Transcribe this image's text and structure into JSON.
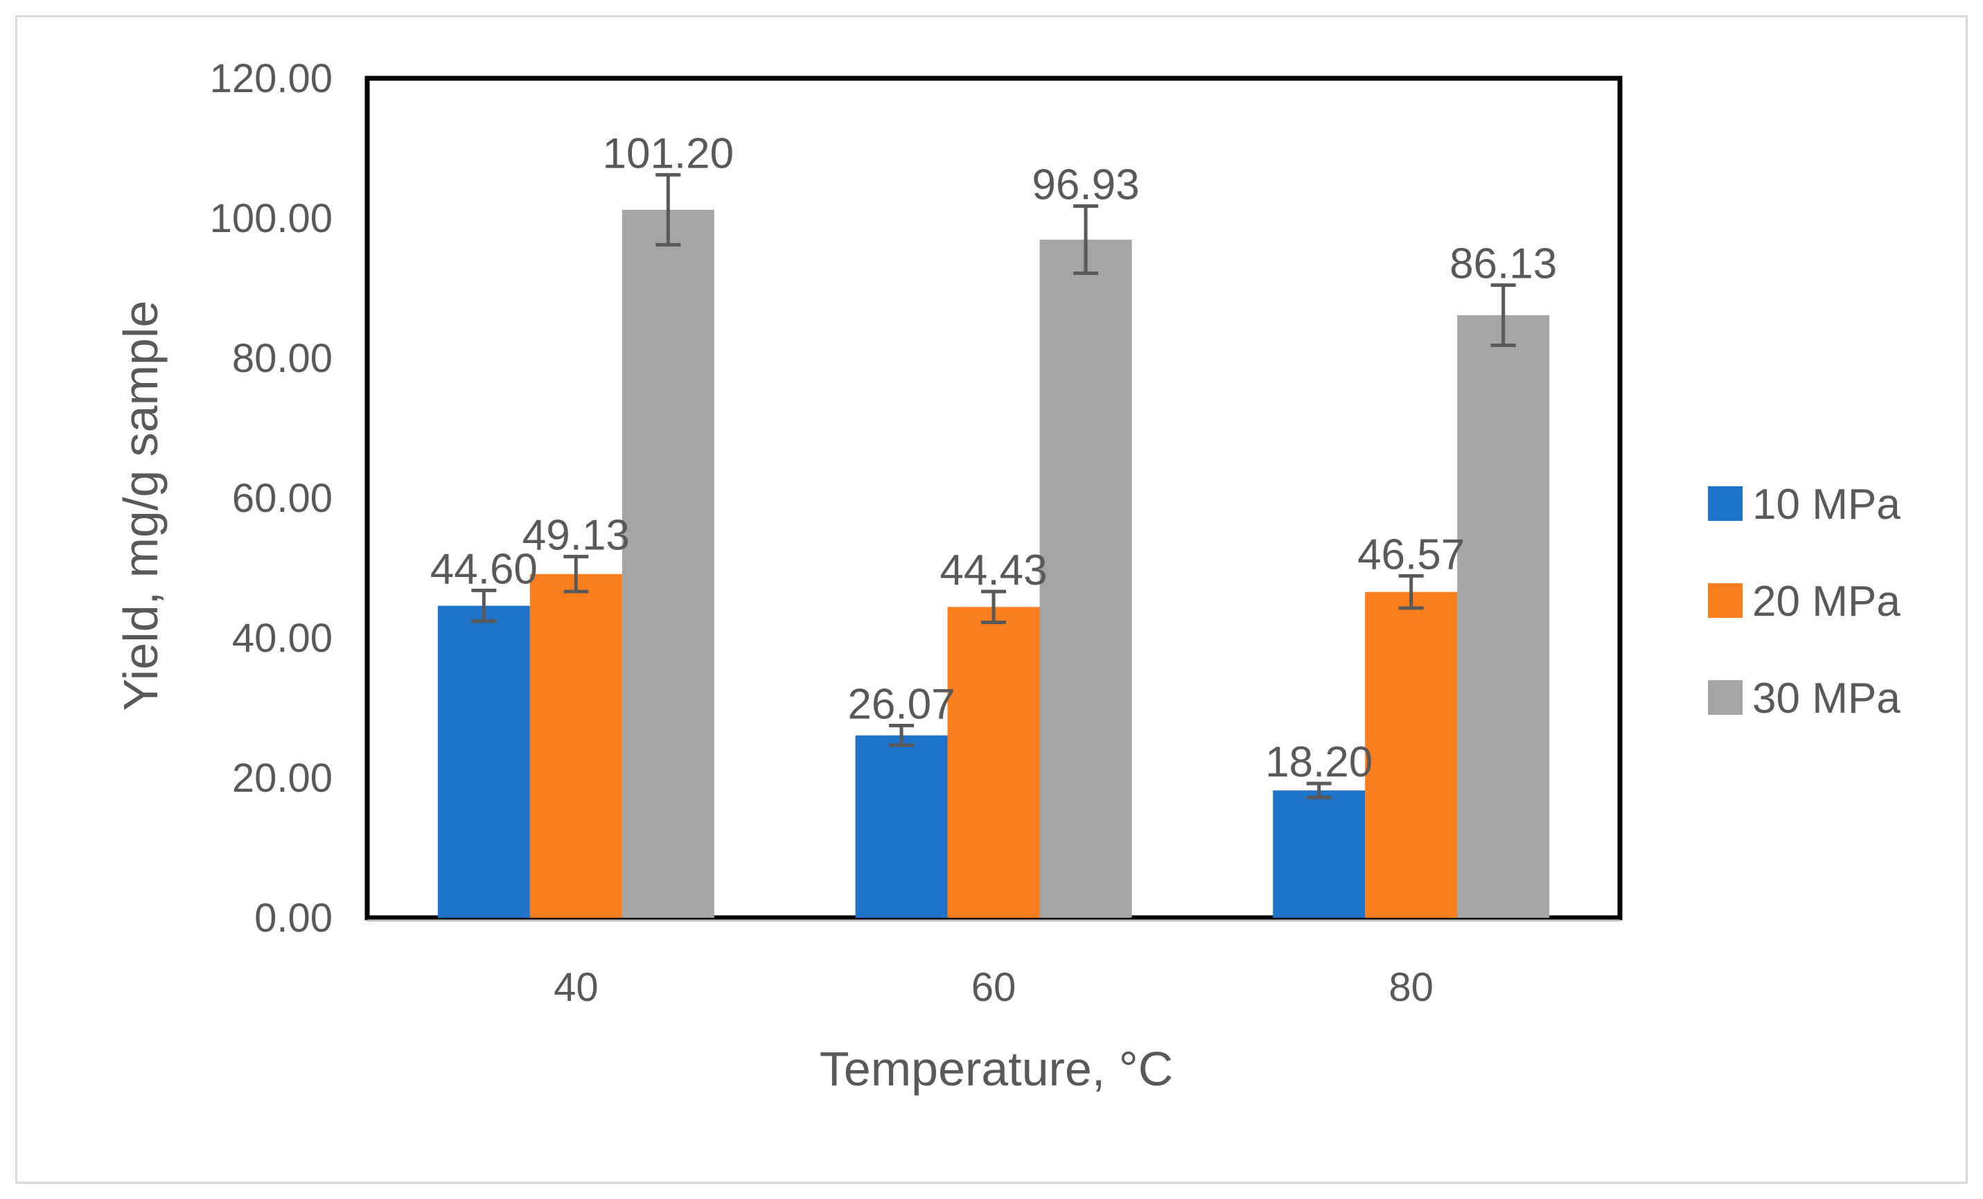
{
  "chart_data": {
    "type": "bar",
    "title": "",
    "xlabel": "Temperature, °C",
    "ylabel": "Yield, mg/g sample",
    "categories": [
      "40",
      "60",
      "80"
    ],
    "ylim": [
      0,
      120
    ],
    "yticks": [
      0,
      20,
      40,
      60,
      80,
      100,
      120
    ],
    "ytick_labels": [
      "0.00",
      "20.00",
      "40.00",
      "60.00",
      "80.00",
      "100.00",
      "120.00"
    ],
    "grid": false,
    "legend_position": "right",
    "series": [
      {
        "name": "10 MPa",
        "color": "#1f73c8",
        "values": [
          44.6,
          26.07,
          18.2
        ],
        "value_labels": [
          "44.60",
          "26.07",
          "18.20"
        ],
        "errors": [
          2.2,
          1.4,
          1.0
        ]
      },
      {
        "name": "20 MPa",
        "color": "#fa7d1e",
        "values": [
          49.13,
          44.43,
          46.57
        ],
        "value_labels": [
          "49.13",
          "44.43",
          "46.57"
        ],
        "errors": [
          2.5,
          2.2,
          2.3
        ]
      },
      {
        "name": "30 MPa",
        "color": "#a5a5a5",
        "values": [
          101.2,
          96.93,
          86.13
        ],
        "value_labels": [
          "101.20",
          "96.93",
          "86.13"
        ],
        "errors": [
          5.0,
          4.8,
          4.3
        ]
      }
    ],
    "error_bar_color": "#595959",
    "plot_border_color": "#000000"
  }
}
